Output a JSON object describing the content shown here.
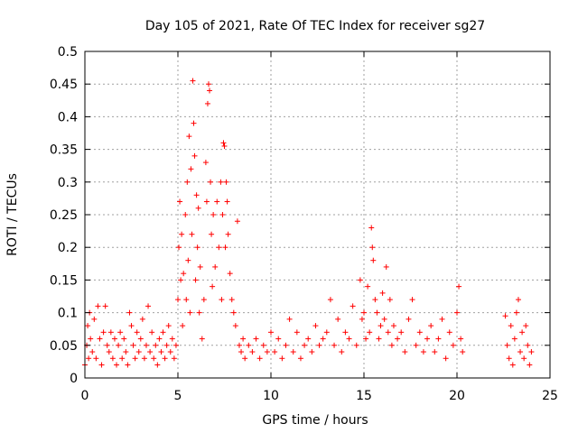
{
  "chart_data": {
    "type": "scatter",
    "title": "Day 105 of 2021, Rate Of TEC Index for receiver sg27",
    "xlabel": "GPS time / hours",
    "ylabel": "ROTI / TECUs",
    "xlim": [
      0,
      25
    ],
    "ylim": [
      0,
      0.5
    ],
    "x_ticks": [
      "0",
      "5",
      "10",
      "15",
      "20",
      "25"
    ],
    "y_ticks": [
      "0",
      "0.05",
      "0.1",
      "0.15",
      "0.2",
      "0.25",
      "0.3",
      "0.35",
      "0.4",
      "0.45",
      "0.5"
    ],
    "x_tick_values": [
      0,
      5,
      10,
      15,
      20,
      25
    ],
    "y_tick_values": [
      0,
      0.05,
      0.1,
      0.15,
      0.2,
      0.25,
      0.3,
      0.35,
      0.4,
      0.45,
      0.5
    ],
    "grid": true,
    "marker": "+",
    "color": "#ff0000",
    "series": [
      {
        "points": [
          [
            0.0,
            0.02
          ],
          [
            0.1,
            0.05
          ],
          [
            0.15,
            0.08
          ],
          [
            0.2,
            0.03
          ],
          [
            0.25,
            0.1
          ],
          [
            0.3,
            0.06
          ],
          [
            0.4,
            0.04
          ],
          [
            0.5,
            0.09
          ],
          [
            0.6,
            0.03
          ],
          [
            0.7,
            0.11
          ],
          [
            0.8,
            0.06
          ],
          [
            0.9,
            0.02
          ],
          [
            1.0,
            0.07
          ],
          [
            1.1,
            0.11
          ],
          [
            1.2,
            0.05
          ],
          [
            1.3,
            0.04
          ],
          [
            1.4,
            0.07
          ],
          [
            1.5,
            0.03
          ],
          [
            1.6,
            0.06
          ],
          [
            1.7,
            0.02
          ],
          [
            1.8,
            0.05
          ],
          [
            1.9,
            0.07
          ],
          [
            2.0,
            0.03
          ],
          [
            2.1,
            0.06
          ],
          [
            2.2,
            0.04
          ],
          [
            2.3,
            0.02
          ],
          [
            2.4,
            0.1
          ],
          [
            2.5,
            0.08
          ],
          [
            2.6,
            0.05
          ],
          [
            2.7,
            0.03
          ],
          [
            2.8,
            0.07
          ],
          [
            2.9,
            0.04
          ],
          [
            3.0,
            0.06
          ],
          [
            3.1,
            0.09
          ],
          [
            3.2,
            0.03
          ],
          [
            3.3,
            0.05
          ],
          [
            3.4,
            0.11
          ],
          [
            3.5,
            0.04
          ],
          [
            3.6,
            0.07
          ],
          [
            3.7,
            0.03
          ],
          [
            3.8,
            0.05
          ],
          [
            3.9,
            0.02
          ],
          [
            4.0,
            0.06
          ],
          [
            4.1,
            0.04
          ],
          [
            4.2,
            0.07
          ],
          [
            4.3,
            0.03
          ],
          [
            4.4,
            0.05
          ],
          [
            4.5,
            0.08
          ],
          [
            4.6,
            0.04
          ],
          [
            4.7,
            0.06
          ],
          [
            4.8,
            0.03
          ],
          [
            4.9,
            0.05
          ],
          [
            5.0,
            0.12
          ],
          [
            5.05,
            0.2
          ],
          [
            5.1,
            0.27
          ],
          [
            5.15,
            0.15
          ],
          [
            5.2,
            0.22
          ],
          [
            5.25,
            0.08
          ],
          [
            5.3,
            0.16
          ],
          [
            5.4,
            0.25
          ],
          [
            5.45,
            0.12
          ],
          [
            5.5,
            0.3
          ],
          [
            5.55,
            0.18
          ],
          [
            5.6,
            0.37
          ],
          [
            5.65,
            0.1
          ],
          [
            5.7,
            0.32
          ],
          [
            5.75,
            0.22
          ],
          [
            5.8,
            0.455
          ],
          [
            5.85,
            0.39
          ],
          [
            5.9,
            0.34
          ],
          [
            5.95,
            0.15
          ],
          [
            6.0,
            0.28
          ],
          [
            6.05,
            0.2
          ],
          [
            6.1,
            0.26
          ],
          [
            6.15,
            0.1
          ],
          [
            6.2,
            0.17
          ],
          [
            6.3,
            0.06
          ],
          [
            6.4,
            0.12
          ],
          [
            6.5,
            0.33
          ],
          [
            6.55,
            0.27
          ],
          [
            6.6,
            0.42
          ],
          [
            6.65,
            0.45
          ],
          [
            6.7,
            0.44
          ],
          [
            6.75,
            0.3
          ],
          [
            6.8,
            0.22
          ],
          [
            6.85,
            0.14
          ],
          [
            6.9,
            0.25
          ],
          [
            7.0,
            0.17
          ],
          [
            7.1,
            0.27
          ],
          [
            7.2,
            0.2
          ],
          [
            7.3,
            0.3
          ],
          [
            7.35,
            0.12
          ],
          [
            7.4,
            0.25
          ],
          [
            7.45,
            0.36
          ],
          [
            7.5,
            0.355
          ],
          [
            7.55,
            0.2
          ],
          [
            7.6,
            0.3
          ],
          [
            7.65,
            0.27
          ],
          [
            7.7,
            0.22
          ],
          [
            7.8,
            0.16
          ],
          [
            7.9,
            0.12
          ],
          [
            8.0,
            0.1
          ],
          [
            8.1,
            0.08
          ],
          [
            8.2,
            0.24
          ],
          [
            8.3,
            0.05
          ],
          [
            8.4,
            0.04
          ],
          [
            8.5,
            0.06
          ],
          [
            8.6,
            0.03
          ],
          [
            8.8,
            0.05
          ],
          [
            9.0,
            0.04
          ],
          [
            9.2,
            0.06
          ],
          [
            9.4,
            0.03
          ],
          [
            9.6,
            0.05
          ],
          [
            9.8,
            0.04
          ],
          [
            10.0,
            0.07
          ],
          [
            10.2,
            0.04
          ],
          [
            10.4,
            0.06
          ],
          [
            10.6,
            0.03
          ],
          [
            10.8,
            0.05
          ],
          [
            11.0,
            0.09
          ],
          [
            11.2,
            0.04
          ],
          [
            11.4,
            0.07
          ],
          [
            11.6,
            0.03
          ],
          [
            11.8,
            0.05
          ],
          [
            12.0,
            0.06
          ],
          [
            12.2,
            0.04
          ],
          [
            12.4,
            0.08
          ],
          [
            12.6,
            0.05
          ],
          [
            12.8,
            0.06
          ],
          [
            13.0,
            0.07
          ],
          [
            13.2,
            0.12
          ],
          [
            13.4,
            0.05
          ],
          [
            13.6,
            0.09
          ],
          [
            13.8,
            0.04
          ],
          [
            14.0,
            0.07
          ],
          [
            14.2,
            0.06
          ],
          [
            14.4,
            0.11
          ],
          [
            14.6,
            0.05
          ],
          [
            14.8,
            0.15
          ],
          [
            14.9,
            0.09
          ],
          [
            15.0,
            0.1
          ],
          [
            15.1,
            0.06
          ],
          [
            15.2,
            0.14
          ],
          [
            15.3,
            0.07
          ],
          [
            15.4,
            0.23
          ],
          [
            15.45,
            0.2
          ],
          [
            15.5,
            0.18
          ],
          [
            15.6,
            0.12
          ],
          [
            15.7,
            0.1
          ],
          [
            15.8,
            0.06
          ],
          [
            15.9,
            0.08
          ],
          [
            16.0,
            0.13
          ],
          [
            16.1,
            0.09
          ],
          [
            16.2,
            0.17
          ],
          [
            16.3,
            0.07
          ],
          [
            16.4,
            0.12
          ],
          [
            16.5,
            0.05
          ],
          [
            16.6,
            0.08
          ],
          [
            16.8,
            0.06
          ],
          [
            17.0,
            0.07
          ],
          [
            17.2,
            0.04
          ],
          [
            17.4,
            0.09
          ],
          [
            17.6,
            0.12
          ],
          [
            17.8,
            0.05
          ],
          [
            18.0,
            0.07
          ],
          [
            18.2,
            0.04
          ],
          [
            18.4,
            0.06
          ],
          [
            18.6,
            0.08
          ],
          [
            18.8,
            0.04
          ],
          [
            19.0,
            0.06
          ],
          [
            19.2,
            0.09
          ],
          [
            19.4,
            0.03
          ],
          [
            19.6,
            0.07
          ],
          [
            19.8,
            0.05
          ],
          [
            20.0,
            0.1
          ],
          [
            20.1,
            0.14
          ],
          [
            20.2,
            0.06
          ],
          [
            20.3,
            0.04
          ],
          [
            22.6,
            0.095
          ],
          [
            22.7,
            0.05
          ],
          [
            22.8,
            0.03
          ],
          [
            22.9,
            0.08
          ],
          [
            23.0,
            0.02
          ],
          [
            23.1,
            0.06
          ],
          [
            23.2,
            0.1
          ],
          [
            23.3,
            0.12
          ],
          [
            23.4,
            0.04
          ],
          [
            23.5,
            0.07
          ],
          [
            23.6,
            0.03
          ],
          [
            23.7,
            0.08
          ],
          [
            23.8,
            0.05
          ],
          [
            23.9,
            0.02
          ],
          [
            24.0,
            0.04
          ]
        ]
      }
    ]
  }
}
